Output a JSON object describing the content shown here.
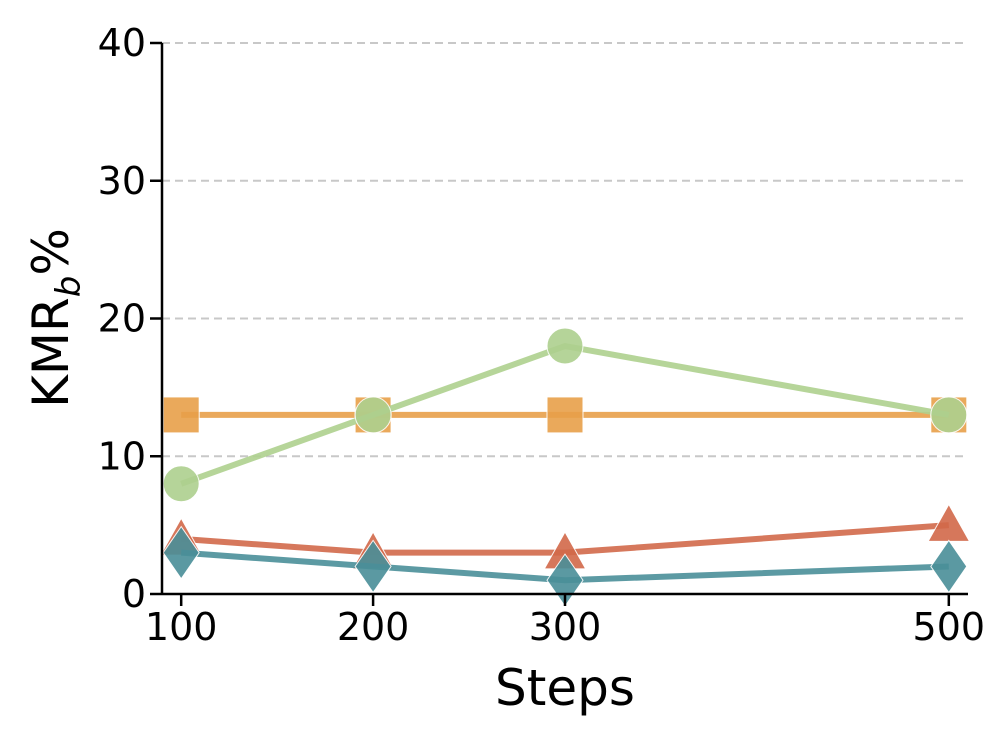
{
  "chart_data": {
    "type": "line",
    "title": "",
    "xlabel": "Steps",
    "ylabel": "KMR",
    "ylabel_subscript": "b",
    "ylabel_suffix": "%",
    "xlim": [
      90,
      510
    ],
    "ylim": [
      0,
      40
    ],
    "x": [
      100,
      200,
      300,
      500
    ],
    "xticks": [
      100,
      200,
      300,
      500
    ],
    "yticks": [
      0,
      10,
      20,
      30,
      40
    ],
    "grid": "horizontal dashed",
    "legend": "none",
    "series": [
      {
        "marker": "square",
        "color": "#E8A04A",
        "values": [
          13,
          13,
          13,
          13
        ]
      },
      {
        "marker": "circle",
        "color": "#AED08E",
        "values": [
          8,
          13,
          18,
          13
        ]
      },
      {
        "marker": "triangle",
        "color": "#D2694A",
        "values": [
          4,
          3,
          3,
          5
        ]
      },
      {
        "marker": "diamond",
        "color": "#4A8F99",
        "values": [
          3,
          2,
          1,
          2
        ]
      }
    ]
  }
}
